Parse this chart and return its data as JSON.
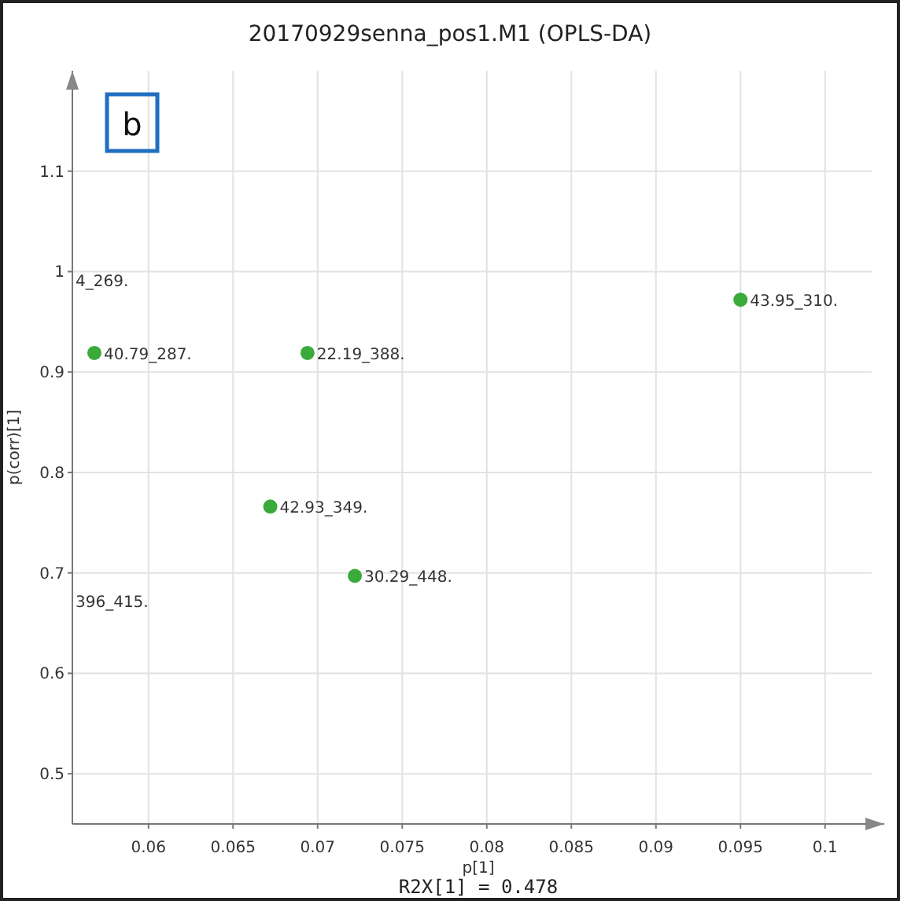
{
  "chart_data": {
    "type": "scatter",
    "title": "20170929senna_pos1.M1 (OPLS-DA)",
    "xlabel": "p[1]",
    "ylabel": "p(corr)[1]",
    "x": [
      0.095,
      0.0568,
      0.0694,
      0.0672,
      0.0722
    ],
    "series": [
      {
        "color": "#3aaa3a",
        "values": [
          0.972,
          0.919,
          0.919,
          0.766,
          0.697
        ]
      }
    ],
    "xlim": [
      0.0555,
      0.1035
    ],
    "ylim": [
      0.45,
      1.2
    ],
    "xticks": [
      0.06,
      0.065,
      0.07,
      0.075,
      0.08,
      0.085,
      0.09,
      0.095,
      0.1
    ],
    "yticks": [
      0.5,
      0.6,
      0.7,
      0.8,
      0.9,
      {
        "value": 1,
        "label": "1"
      },
      1.1
    ],
    "grid": true,
    "marker": "circle",
    "annotations": [
      "b",
      "R2X[1] = 0.478",
      {
        "text": "43.95_310.",
        "x": 0.095,
        "y": 0.972
      },
      {
        "text": "40.79_287.",
        "x": 0.0568,
        "y": 0.919
      },
      {
        "text": "22.19_388.",
        "x": 0.0694,
        "y": 0.919
      },
      {
        "text": "42.93_349.",
        "x": 0.0672,
        "y": 0.766
      },
      {
        "text": "30.29_448.",
        "x": 0.0722,
        "y": 0.697
      },
      "4_269.",
      "396_415."
    ]
  }
}
